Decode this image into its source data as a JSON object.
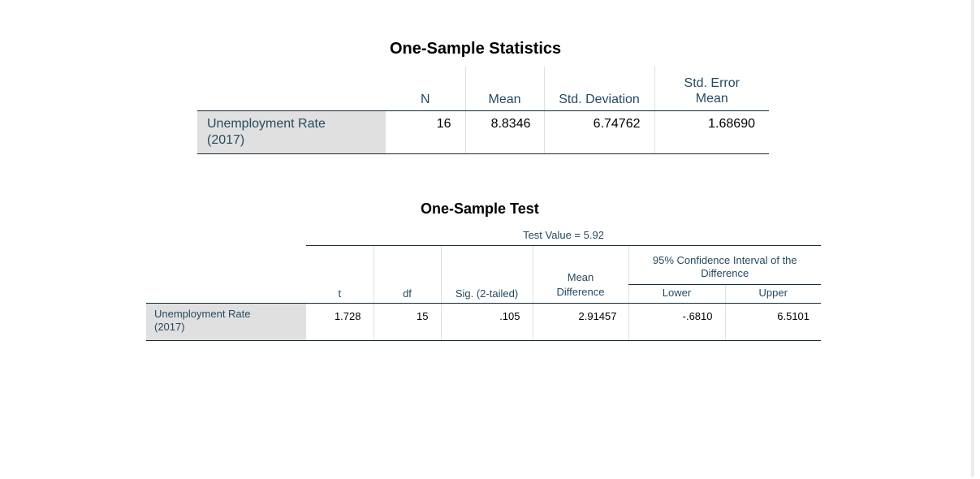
{
  "one_sample_statistics": {
    "title": "One-Sample Statistics",
    "headers": {
      "n": "N",
      "mean": "Mean",
      "std_deviation": "Std. Deviation",
      "std_error_mean": "Std. Error Mean"
    },
    "rows": [
      {
        "label": "Unemployment Rate (2017)",
        "n": "16",
        "mean": "8.8346",
        "std_deviation": "6.74762",
        "std_error_mean": "1.68690"
      }
    ]
  },
  "one_sample_test": {
    "title": "One-Sample Test",
    "test_value_label": "Test Value = 5.92",
    "ci_header": "95% Confidence Interval of the Difference",
    "headers": {
      "t": "t",
      "df": "df",
      "sig": "Sig. (2-tailed)",
      "mean_difference": "Mean Difference",
      "lower": "Lower",
      "upper": "Upper"
    },
    "rows": [
      {
        "label": "Unemployment Rate (2017)",
        "t": "1.728",
        "df": "15",
        "sig": ".105",
        "mean_difference": "2.91457",
        "lower": "-.6810",
        "upper": "6.5101"
      }
    ]
  }
}
